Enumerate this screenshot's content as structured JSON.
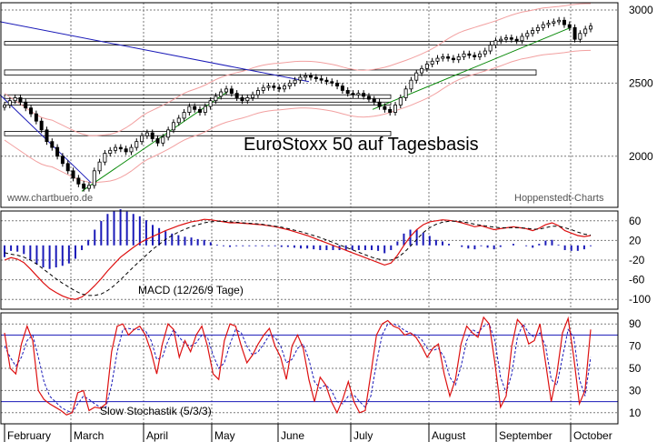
{
  "colors": {
    "frame": "#000000",
    "grid": "#7a7a7a",
    "candle": "#000000",
    "downtrend": "#1a1ab8",
    "uptrend": "#0a8a0a",
    "bollinger": "#f2a0a0",
    "macd_line": "#dd1111",
    "signal_line": "#000000",
    "histogram": "#1a1ab8",
    "stoch_k": "#dd1111",
    "stoch_d": "#1a1ab8",
    "stoch_levels": "#1a1ab8",
    "support_box": "#000000"
  },
  "chart_data": [
    {
      "type": "candlestick",
      "title": "EuroStoxx 50 auf Tagesbasis",
      "watermark_left": "www.chartbuero.de",
      "watermark_right": "Hoppenstedt-Charts",
      "yticks": [
        3000,
        2500,
        2000
      ],
      "ylim": [
        1650,
        3050
      ],
      "months": [
        "February",
        "March",
        "April",
        "May",
        "June",
        "July",
        "August",
        "September",
        "October"
      ],
      "closes": [
        2350,
        2380,
        2400,
        2370,
        2330,
        2290,
        2240,
        2180,
        2100,
        2060,
        2000,
        1950,
        1900,
        1850,
        1810,
        1780,
        1800,
        1900,
        1960,
        2020,
        2040,
        2060,
        2050,
        2030,
        2060,
        2100,
        2140,
        2160,
        2120,
        2090,
        2130,
        2180,
        2230,
        2260,
        2300,
        2340,
        2320,
        2300,
        2340,
        2380,
        2410,
        2440,
        2460,
        2430,
        2400,
        2380,
        2400,
        2420,
        2450,
        2470,
        2480,
        2470,
        2460,
        2480,
        2500,
        2520,
        2540,
        2550,
        2540,
        2530,
        2520,
        2510,
        2500,
        2480,
        2450,
        2430,
        2420,
        2430,
        2410,
        2390,
        2370,
        2340,
        2320,
        2300,
        2350,
        2400,
        2460,
        2520,
        2570,
        2600,
        2630,
        2650,
        2670,
        2680,
        2670,
        2660,
        2680,
        2700,
        2690,
        2680,
        2700,
        2720,
        2760,
        2790,
        2800,
        2810,
        2800,
        2790,
        2820,
        2840,
        2860,
        2880,
        2900,
        2910,
        2920,
        2930,
        2900,
        2880,
        2800,
        2840,
        2870,
        2890
      ]
    },
    {
      "type": "line",
      "label": "MACD (12/26/9 Tage)",
      "yticks": [
        60,
        20,
        -20,
        -60,
        -100
      ],
      "ylim": [
        -120,
        80
      ],
      "macd": [
        -20,
        -15,
        -18,
        -25,
        -38,
        -52,
        -66,
        -78,
        -86,
        -93,
        -98,
        -100,
        -95,
        -85,
        -72,
        -58,
        -42,
        -28,
        -14,
        -4,
        6,
        15,
        22,
        28,
        34,
        40,
        45,
        50,
        54,
        58,
        60,
        63,
        62,
        60,
        58,
        56,
        56,
        55,
        54,
        53,
        52,
        50,
        48,
        45,
        42,
        38,
        34,
        30,
        25,
        20,
        15,
        10,
        5,
        0,
        -5,
        -10,
        -15,
        -20,
        -25,
        -30,
        -26,
        -10,
        10,
        28,
        42,
        52,
        58,
        60,
        62,
        61,
        59,
        56,
        52,
        48,
        50,
        46,
        42,
        44,
        46,
        48,
        46,
        44,
        40,
        45,
        52,
        56,
        50,
        40,
        35,
        30,
        28,
        30
      ],
      "signal": [
        -5,
        -8,
        -10,
        -14,
        -20,
        -28,
        -38,
        -48,
        -58,
        -67,
        -75,
        -83,
        -89,
        -92,
        -92,
        -89,
        -82,
        -72,
        -60,
        -47,
        -34,
        -22,
        -10,
        2,
        12,
        22,
        30,
        37,
        43,
        48,
        52,
        56,
        58,
        59,
        59,
        58,
        57,
        56,
        55,
        54,
        53,
        51,
        49,
        47,
        44,
        41,
        38,
        34,
        30,
        26,
        21,
        16,
        11,
        6,
        1,
        -4,
        -9,
        -14,
        -18,
        -20,
        -20,
        -15,
        -5,
        8,
        22,
        36,
        46,
        53,
        57,
        59,
        59,
        58,
        56,
        53,
        51,
        49,
        47,
        46,
        46,
        46,
        46,
        45,
        43,
        43,
        46,
        49,
        49,
        46,
        42,
        37,
        33,
        31
      ]
    },
    {
      "type": "line",
      "label": "Slow Stochastik (5/3/3)",
      "yticks": [
        90,
        70,
        50,
        30,
        10
      ],
      "ylim": [
        0,
        100
      ],
      "levels": [
        20,
        80
      ],
      "k": [
        82,
        50,
        45,
        72,
        88,
        75,
        30,
        22,
        18,
        15,
        12,
        8,
        10,
        28,
        30,
        12,
        15,
        14,
        18,
        65,
        88,
        90,
        80,
        85,
        88,
        80,
        65,
        45,
        72,
        90,
        85,
        60,
        75,
        65,
        80,
        88,
        70,
        45,
        40,
        75,
        90,
        88,
        70,
        55,
        62,
        72,
        80,
        86,
        70,
        60,
        40,
        70,
        80,
        68,
        40,
        20,
        42,
        35,
        20,
        10,
        22,
        38,
        20,
        10,
        12,
        45,
        80,
        90,
        93,
        88,
        86,
        80,
        82,
        78,
        70,
        60,
        68,
        72,
        45,
        25,
        40,
        72,
        88,
        82,
        78,
        96,
        90,
        55,
        15,
        25,
        70,
        94,
        88,
        72,
        75,
        90,
        55,
        20,
        45,
        82,
        95,
        60,
        18,
        30,
        85
      ],
      "d": [
        70,
        60,
        52,
        60,
        75,
        80,
        60,
        38,
        25,
        20,
        15,
        12,
        10,
        18,
        25,
        22,
        18,
        15,
        15,
        35,
        65,
        85,
        86,
        85,
        85,
        84,
        75,
        58,
        60,
        75,
        85,
        78,
        72,
        70,
        73,
        80,
        78,
        62,
        50,
        55,
        72,
        85,
        82,
        70,
        62,
        65,
        72,
        80,
        78,
        70,
        55,
        58,
        68,
        72,
        58,
        38,
        32,
        35,
        30,
        20,
        18,
        25,
        26,
        20,
        15,
        25,
        55,
        80,
        90,
        90,
        88,
        84,
        82,
        80,
        76,
        68,
        66,
        68,
        60,
        42,
        35,
        52,
        75,
        85,
        82,
        88,
        90,
        75,
        42,
        28,
        45,
        78,
        90,
        82,
        78,
        82,
        70,
        40,
        35,
        60,
        85,
        78,
        40,
        25,
        60
      ]
    }
  ]
}
